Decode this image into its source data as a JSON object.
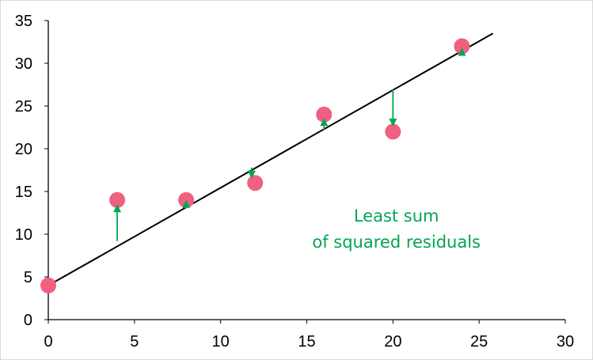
{
  "chart_data": {
    "type": "scatter",
    "title": "",
    "xlabel": "",
    "ylabel": "",
    "xlim": [
      0,
      30
    ],
    "ylim": [
      0,
      35
    ],
    "x_ticks": [
      "0",
      "5",
      "10",
      "15",
      "20",
      "25",
      "30"
    ],
    "y_ticks": [
      "0",
      "5",
      "10",
      "15",
      "20",
      "25",
      "30",
      "35"
    ],
    "grid": false,
    "legend": "none",
    "series": [
      {
        "points": [
          {
            "x": 0,
            "y": 4
          },
          {
            "x": 4,
            "y": 14
          },
          {
            "x": 8,
            "y": 14
          },
          {
            "x": 12,
            "y": 16
          },
          {
            "x": 16,
            "y": 24
          },
          {
            "x": 20,
            "y": 22
          },
          {
            "x": 24,
            "y": 32
          }
        ],
        "color": "#f06080"
      }
    ],
    "fit_line": {
      "x_start": 0,
      "y_start": 4,
      "x_end": 25.8,
      "y_end": 33.5,
      "color": "#000000"
    },
    "residuals": [
      {
        "x": 4,
        "from_y": 9.2,
        "to_y": 13.5
      },
      {
        "x": 8,
        "from_y": 13.0,
        "to_y": 14.0
      },
      {
        "x": 11.8,
        "from_y": 17.8,
        "to_y": 16.5
      },
      {
        "x": 16,
        "from_y": 22.2,
        "to_y": 23.6
      },
      {
        "x": 20,
        "from_y": 27.0,
        "to_y": 22.6
      },
      {
        "x": 24,
        "from_y": 31.4,
        "to_y": 31.8
      }
    ],
    "residual_color": "#00a651",
    "annotation": {
      "lines": [
        "Least sum",
        "of squared residuals"
      ],
      "anchor_x": 20.2,
      "anchor_y": 11.5
    }
  }
}
